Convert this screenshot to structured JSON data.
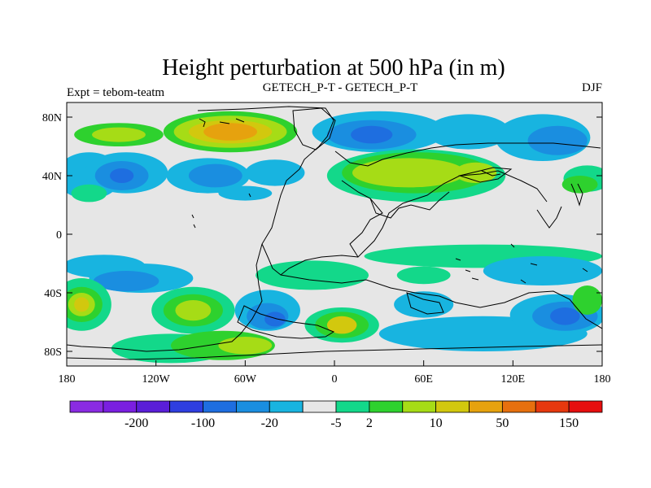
{
  "chart_data": {
    "type": "heatmap",
    "title": "Height perturbation at 500 hPa (in m)",
    "left_string": "Expt = tebom-teatm",
    "center_string": "GETECH_P-T - GETECH_P-T",
    "right_string": "DJF",
    "x_range": [
      -180,
      180
    ],
    "y_range": [
      -90,
      90
    ],
    "x_ticks": [
      {
        "value": -180,
        "label": "180"
      },
      {
        "value": -120,
        "label": "120W"
      },
      {
        "value": -60,
        "label": "60W"
      },
      {
        "value": 0,
        "label": "0"
      },
      {
        "value": 60,
        "label": "60E"
      },
      {
        "value": 120,
        "label": "120E"
      },
      {
        "value": 180,
        "label": "180"
      }
    ],
    "y_ticks": [
      {
        "value": 80,
        "label": "80N"
      },
      {
        "value": 40,
        "label": "40N"
      },
      {
        "value": 0,
        "label": "0"
      },
      {
        "value": -40,
        "label": "40S"
      },
      {
        "value": -80,
        "label": "80S"
      }
    ],
    "colorbar": {
      "colors": [
        "#8a2be2",
        "#7a1fe0",
        "#5a1ed8",
        "#2e3ee0",
        "#1e6ee0",
        "#1a8ee0",
        "#18b4e0",
        "#e6e6e6",
        "#13d88a",
        "#2ed12e",
        "#a6dc16",
        "#d2c80e",
        "#e6a20e",
        "#e6700e",
        "#e6380e",
        "#e60e0e"
      ],
      "labels": [
        {
          "after_index": 1,
          "label": "-200"
        },
        {
          "after_index": 3,
          "label": "-100"
        },
        {
          "after_index": 5,
          "label": "-20"
        },
        {
          "after_index": 7,
          "label": "-5"
        },
        {
          "after_index": 8,
          "label": "2"
        },
        {
          "after_index": 10,
          "label": "10"
        },
        {
          "after_index": 12,
          "label": "50"
        },
        {
          "after_index": 14,
          "label": "150"
        }
      ]
    },
    "blobs": [
      {
        "lon": -145,
        "lat": 68,
        "rx": 30,
        "ry": 8,
        "level": 9
      },
      {
        "lon": -145,
        "lat": 68,
        "rx": 18,
        "ry": 5,
        "level": 10
      },
      {
        "lon": -70,
        "lat": 70,
        "rx": 45,
        "ry": 14,
        "level": 9
      },
      {
        "lon": -70,
        "lat": 70,
        "rx": 38,
        "ry": 11,
        "level": 10
      },
      {
        "lon": -70,
        "lat": 70,
        "rx": 28,
        "ry": 8,
        "level": 11
      },
      {
        "lon": -70,
        "lat": 70,
        "rx": 18,
        "ry": 6,
        "level": 12
      },
      {
        "lon": -165,
        "lat": 40,
        "rx": 22,
        "ry": 16,
        "level": 6
      },
      {
        "lon": -140,
        "lat": 42,
        "rx": 28,
        "ry": 14,
        "level": 6
      },
      {
        "lon": -143,
        "lat": 40,
        "rx": 18,
        "ry": 10,
        "level": 5
      },
      {
        "lon": -143,
        "lat": 40,
        "rx": 8,
        "ry": 5,
        "level": 4
      },
      {
        "lon": -85,
        "lat": 40,
        "rx": 28,
        "ry": 12,
        "level": 6
      },
      {
        "lon": -80,
        "lat": 40,
        "rx": 18,
        "ry": 8,
        "level": 5
      },
      {
        "lon": -40,
        "lat": 42,
        "rx": 20,
        "ry": 9,
        "level": 6
      },
      {
        "lon": -165,
        "lat": 28,
        "rx": 12,
        "ry": 6,
        "level": 8
      },
      {
        "lon": -60,
        "lat": 28,
        "rx": 18,
        "ry": 5,
        "level": 6
      },
      {
        "lon": 30,
        "lat": 70,
        "rx": 45,
        "ry": 14,
        "level": 6
      },
      {
        "lon": 25,
        "lat": 68,
        "rx": 30,
        "ry": 10,
        "level": 5
      },
      {
        "lon": 25,
        "lat": 68,
        "rx": 14,
        "ry": 6,
        "level": 4
      },
      {
        "lon": 90,
        "lat": 70,
        "rx": 28,
        "ry": 12,
        "level": 6
      },
      {
        "lon": 140,
        "lat": 66,
        "rx": 32,
        "ry": 16,
        "level": 6
      },
      {
        "lon": 150,
        "lat": 64,
        "rx": 20,
        "ry": 10,
        "level": 5
      },
      {
        "lon": 55,
        "lat": 40,
        "rx": 60,
        "ry": 18,
        "level": 8
      },
      {
        "lon": 55,
        "lat": 42,
        "rx": 50,
        "ry": 14,
        "level": 9
      },
      {
        "lon": 50,
        "lat": 42,
        "rx": 38,
        "ry": 10,
        "level": 10
      },
      {
        "lon": 95,
        "lat": 42,
        "rx": 14,
        "ry": 7,
        "level": 10
      },
      {
        "lon": 170,
        "lat": 38,
        "rx": 16,
        "ry": 9,
        "level": 8
      },
      {
        "lon": 165,
        "lat": 34,
        "rx": 12,
        "ry": 6,
        "level": 9
      },
      {
        "lon": -155,
        "lat": -22,
        "rx": 28,
        "ry": 8,
        "level": 6
      },
      {
        "lon": -130,
        "lat": -30,
        "rx": 35,
        "ry": 10,
        "level": 6
      },
      {
        "lon": -140,
        "lat": -32,
        "rx": 22,
        "ry": 7,
        "level": 5
      },
      {
        "lon": -15,
        "lat": -28,
        "rx": 38,
        "ry": 10,
        "level": 8
      },
      {
        "lon": 100,
        "lat": -15,
        "rx": 80,
        "ry": 8,
        "level": 8
      },
      {
        "lon": 60,
        "lat": -28,
        "rx": 18,
        "ry": 6,
        "level": 8
      },
      {
        "lon": 140,
        "lat": -25,
        "rx": 40,
        "ry": 10,
        "level": 6
      },
      {
        "lon": -170,
        "lat": -48,
        "rx": 20,
        "ry": 18,
        "level": 8
      },
      {
        "lon": -170,
        "lat": -48,
        "rx": 14,
        "ry": 12,
        "level": 9
      },
      {
        "lon": -170,
        "lat": -48,
        "rx": 9,
        "ry": 8,
        "level": 10
      },
      {
        "lon": -170,
        "lat": -48,
        "rx": 5,
        "ry": 5,
        "level": 11
      },
      {
        "lon": -95,
        "lat": -52,
        "rx": 28,
        "ry": 16,
        "level": 8
      },
      {
        "lon": -95,
        "lat": -52,
        "rx": 20,
        "ry": 11,
        "level": 9
      },
      {
        "lon": -95,
        "lat": -52,
        "rx": 12,
        "ry": 7,
        "level": 10
      },
      {
        "lon": -45,
        "lat": -52,
        "rx": 22,
        "ry": 14,
        "level": 6
      },
      {
        "lon": -45,
        "lat": -56,
        "rx": 14,
        "ry": 9,
        "level": 5
      },
      {
        "lon": -40,
        "lat": -58,
        "rx": 7,
        "ry": 5,
        "level": 4
      },
      {
        "lon": 5,
        "lat": -62,
        "rx": 25,
        "ry": 12,
        "level": 8
      },
      {
        "lon": 5,
        "lat": -62,
        "rx": 18,
        "ry": 9,
        "level": 9
      },
      {
        "lon": 5,
        "lat": -62,
        "rx": 10,
        "ry": 6,
        "level": 11
      },
      {
        "lon": 60,
        "lat": -48,
        "rx": 20,
        "ry": 9,
        "level": 6
      },
      {
        "lon": 100,
        "lat": -68,
        "rx": 70,
        "ry": 12,
        "level": 6
      },
      {
        "lon": 150,
        "lat": -55,
        "rx": 32,
        "ry": 14,
        "level": 6
      },
      {
        "lon": 155,
        "lat": -56,
        "rx": 22,
        "ry": 10,
        "level": 5
      },
      {
        "lon": 155,
        "lat": -56,
        "rx": 10,
        "ry": 6,
        "level": 4
      },
      {
        "lon": -110,
        "lat": -78,
        "rx": 40,
        "ry": 10,
        "level": 8
      },
      {
        "lon": -75,
        "lat": -76,
        "rx": 35,
        "ry": 10,
        "level": 9
      },
      {
        "lon": -60,
        "lat": -76,
        "rx": 18,
        "ry": 6,
        "level": 10
      },
      {
        "lon": 170,
        "lat": -45,
        "rx": 10,
        "ry": 10,
        "level": 9
      }
    ]
  }
}
